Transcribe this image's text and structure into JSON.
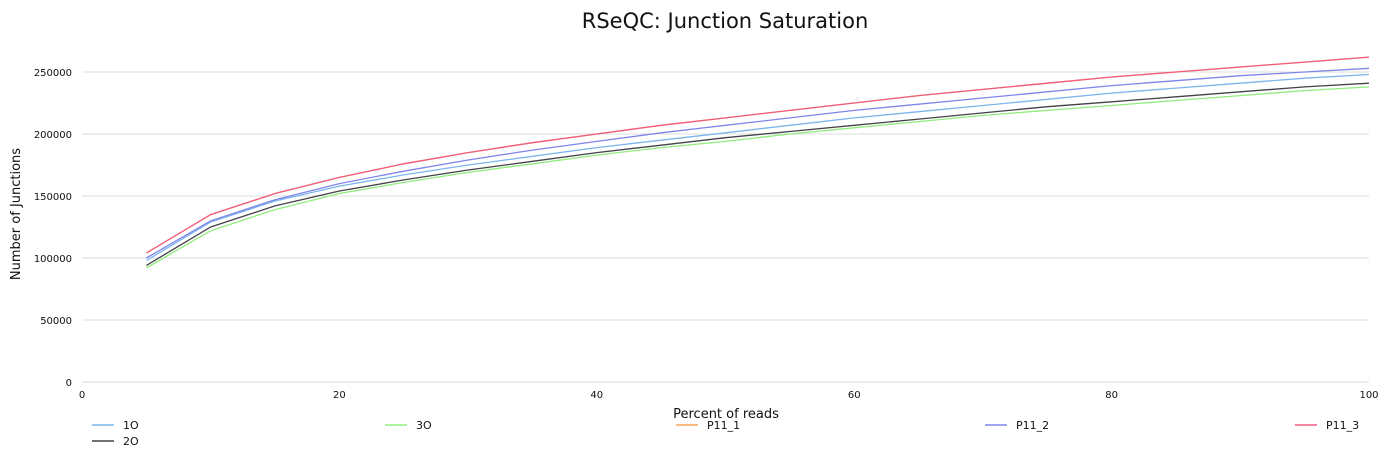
{
  "chart_data": {
    "type": "line",
    "title": "RSeQC: Junction Saturation",
    "xlabel": "Percent of reads",
    "ylabel": "Number of Junctions",
    "xlim": [
      0,
      100
    ],
    "ylim": [
      0,
      275000
    ],
    "xticks": [
      0,
      20,
      40,
      60,
      80,
      100
    ],
    "yticks": [
      0,
      50000,
      100000,
      150000,
      200000,
      250000
    ],
    "grid": "horizontal",
    "legend_position": "bottom",
    "x": [
      5,
      10,
      15,
      20,
      25,
      30,
      35,
      40,
      45,
      50,
      55,
      60,
      65,
      70,
      75,
      80,
      85,
      90,
      95,
      100
    ],
    "series": [
      {
        "name": "1O",
        "color": "#7cb5ec",
        "values": [
          98000,
          129000,
          146000,
          158000,
          167000,
          175000,
          182000,
          189000,
          195000,
          201000,
          207000,
          213000,
          218000,
          223000,
          228000,
          233000,
          237000,
          241000,
          245000,
          248000
        ]
      },
      {
        "name": "2O",
        "color": "#434348",
        "values": [
          94000,
          125000,
          142000,
          154000,
          163000,
          171000,
          178000,
          185000,
          191000,
          197000,
          202000,
          207000,
          212000,
          217000,
          222000,
          226000,
          230000,
          234000,
          238000,
          241000
        ]
      },
      {
        "name": "3O",
        "color": "#90ed7d",
        "values": [
          92000,
          122000,
          139000,
          152000,
          161000,
          169000,
          176000,
          183000,
          189000,
          194000,
          200000,
          205000,
          210000,
          215000,
          219000,
          223000,
          227000,
          231000,
          235000,
          238000
        ]
      },
      {
        "name": "P11_1",
        "color": "#f7a35c",
        "values": [
          104000,
          135000,
          152000,
          165000,
          176000,
          185000,
          193000,
          200000,
          207000,
          213000,
          219000,
          225000,
          231000,
          236000,
          241000,
          246000,
          250000,
          254000,
          258000,
          262000
        ]
      },
      {
        "name": "P11_2",
        "color": "#8085e9",
        "values": [
          100000,
          130000,
          147000,
          160000,
          170000,
          179000,
          187000,
          194000,
          201000,
          207000,
          213000,
          219000,
          224000,
          229000,
          234000,
          239000,
          243000,
          247000,
          250000,
          253000
        ]
      },
      {
        "name": "P11_3",
        "color": "#f15c80",
        "values": [
          104000,
          135000,
          152000,
          165000,
          176000,
          185000,
          193000,
          200000,
          207000,
          213000,
          219000,
          225000,
          231000,
          236000,
          241000,
          246000,
          250000,
          254000,
          258000,
          262000
        ]
      }
    ]
  }
}
